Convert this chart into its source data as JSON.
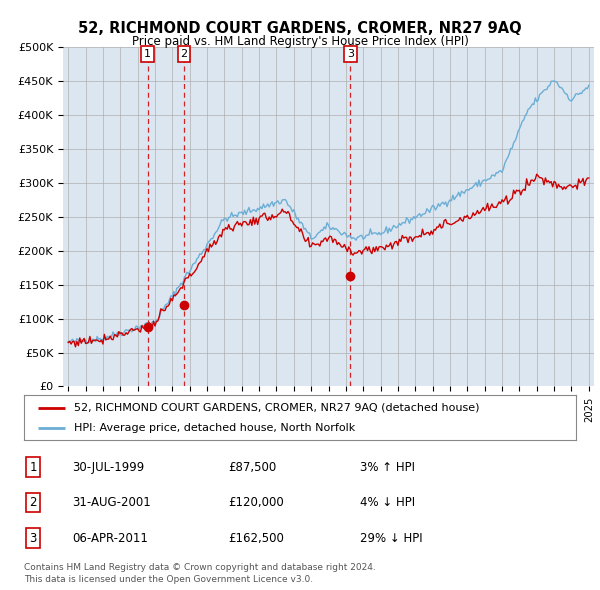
{
  "title": "52, RICHMOND COURT GARDENS, CROMER, NR27 9AQ",
  "subtitle": "Price paid vs. HM Land Registry's House Price Index (HPI)",
  "legend_line1": "52, RICHMOND COURT GARDENS, CROMER, NR27 9AQ (detached house)",
  "legend_line2": "HPI: Average price, detached house, North Norfolk",
  "price_paid_color": "#cc0000",
  "hpi_color": "#6baed6",
  "background_color": "#dce6f1",
  "plot_bg_color": "#ffffff",
  "grid_color": "#b0b0b0",
  "ylim": [
    0,
    500000
  ],
  "yticks": [
    0,
    50000,
    100000,
    150000,
    200000,
    250000,
    300000,
    350000,
    400000,
    450000,
    500000
  ],
  "ytick_labels": [
    "£0",
    "£50K",
    "£100K",
    "£150K",
    "£200K",
    "£250K",
    "£300K",
    "£350K",
    "£400K",
    "£450K",
    "£500K"
  ],
  "transactions": [
    {
      "date": 1999.58,
      "price": 87500,
      "label": "1"
    },
    {
      "date": 2001.67,
      "price": 120000,
      "label": "2"
    },
    {
      "date": 2011.26,
      "price": 162500,
      "label": "3"
    }
  ],
  "table_rows": [
    {
      "num": "1",
      "date": "30-JUL-1999",
      "price": "£87,500",
      "change": "3% ↑ HPI"
    },
    {
      "num": "2",
      "date": "31-AUG-2001",
      "price": "£120,000",
      "change": "4% ↓ HPI"
    },
    {
      "num": "3",
      "date": "06-APR-2011",
      "price": "£162,500",
      "change": "29% ↓ HPI"
    }
  ],
  "footer": [
    "Contains HM Land Registry data © Crown copyright and database right 2024.",
    "This data is licensed under the Open Government Licence v3.0."
  ],
  "xlim_start": 1994.7,
  "xlim_end": 2025.3
}
